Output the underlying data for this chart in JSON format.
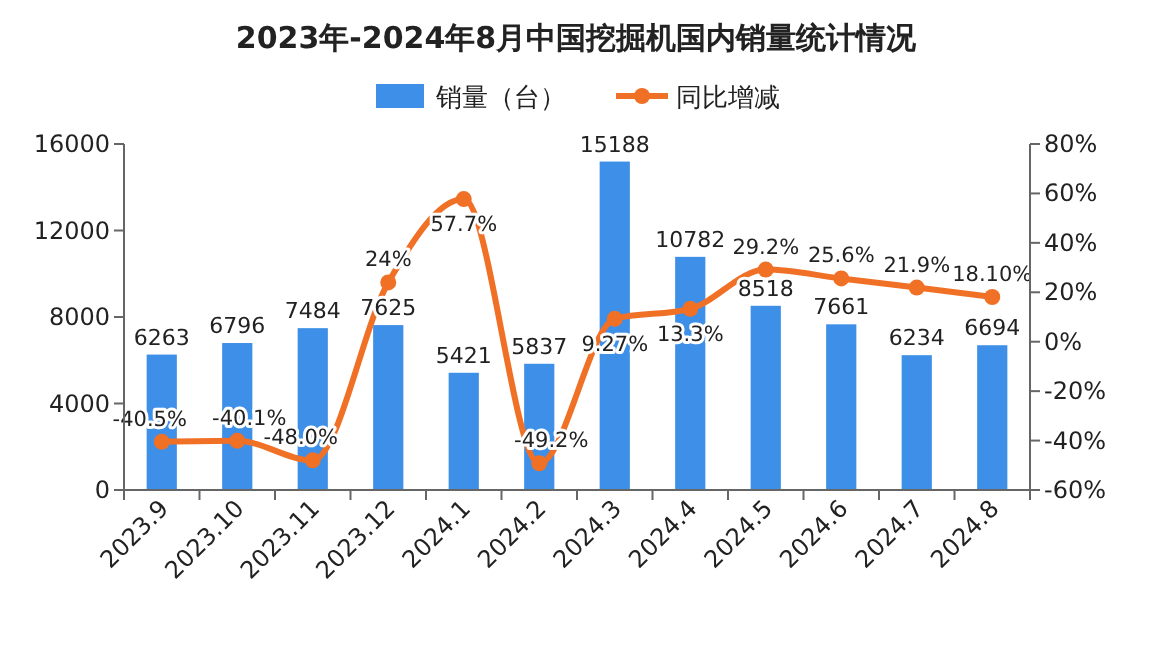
{
  "chart_data": {
    "type": "bar",
    "title": "2023年-2024年8月中国挖掘机国内销量统计情况",
    "categories": [
      "2023.9",
      "2023.10",
      "2023.11",
      "2023.12",
      "2024.1",
      "2024.2",
      "2024.3",
      "2024.4",
      "2024.5",
      "2024.6",
      "2024.7",
      "2024.8"
    ],
    "series": [
      {
        "name": "销量（台）",
        "color": "#3d8fe8",
        "values": [
          6263,
          6796,
          7484,
          7625,
          5421,
          5837,
          15188,
          10782,
          8518,
          7661,
          6234,
          6694
        ]
      },
      {
        "name": "同比增减",
        "type": "line",
        "axis": "y2",
        "color": "#f07026",
        "values": [
          -40.5,
          -40.1,
          -48.0,
          24,
          57.7,
          -49.2,
          9.27,
          13.3,
          29.2,
          25.6,
          21.9,
          18.1
        ],
        "value_labels": [
          "-40.5%",
          "-40.1%",
          "-48.0%",
          "24%",
          "57.7%",
          "-49.2%",
          "9.27%",
          "13.3%",
          "29.2%",
          "25.6%",
          "21.9%",
          "18.10%"
        ]
      }
    ],
    "ylim": [
      0,
      16000
    ],
    "yticks": [
      0,
      4000,
      8000,
      12000,
      16000
    ],
    "y2lim": [
      -60,
      80
    ],
    "y2ticks": [
      {
        "value": -60,
        "label": "-60%"
      },
      {
        "value": -40,
        "label": "-40%"
      },
      {
        "value": -20,
        "label": "-20%"
      },
      {
        "value": 0,
        "label": "0%"
      },
      {
        "value": 20,
        "label": "20%"
      },
      {
        "value": 40,
        "label": "40%"
      },
      {
        "value": 60,
        "label": "60%"
      },
      {
        "value": 80,
        "label": "80%"
      }
    ],
    "data_labels": true,
    "marker": "circle",
    "legend": "top",
    "grid": false
  }
}
